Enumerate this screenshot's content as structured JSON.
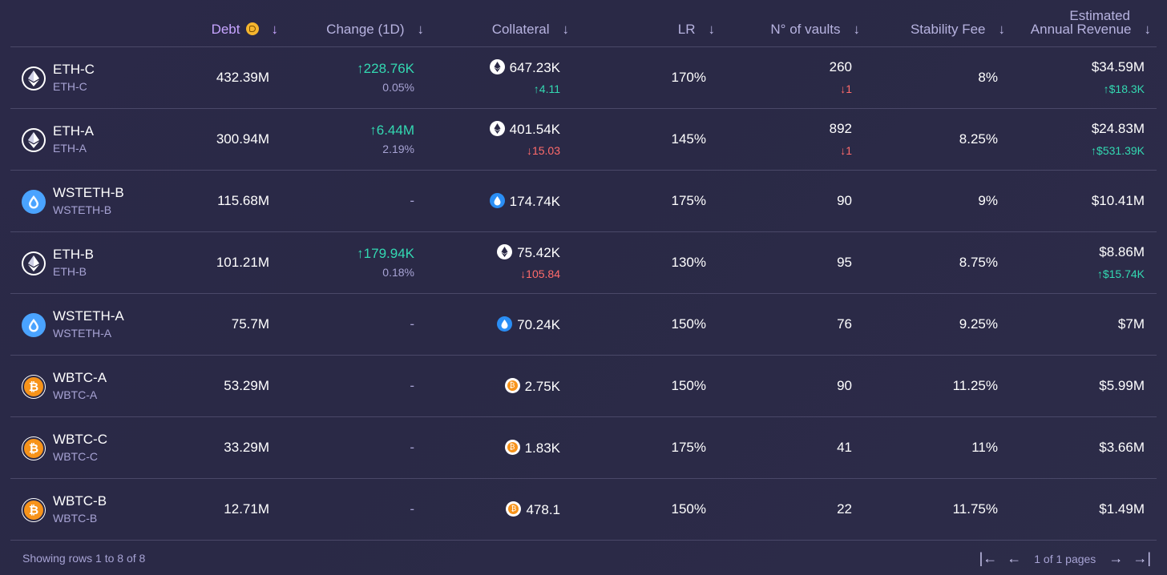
{
  "columns": {
    "debt": "Debt",
    "change": "Change (1D)",
    "collateral": "Collateral",
    "lr": "LR",
    "vaults": "N° of vaults",
    "fee": "Stability Fee",
    "revenue_line1": "Estimated",
    "revenue_line2": "Annual Revenue",
    "sort_arrow": "↓"
  },
  "rows": [
    {
      "icon": "eth",
      "name": "ETH-C",
      "sub": "ETH-C",
      "debt": "432.39M",
      "change": "↑228.76K",
      "change_dir": "up",
      "change_pct": "0.05%",
      "coll_icon": "eth",
      "collateral": "647.23K",
      "coll_delta": "↑4.11",
      "coll_dir": "up",
      "lr": "170%",
      "vaults": "260",
      "vaults_delta": "↓1",
      "vaults_dir": "down",
      "fee": "8%",
      "revenue": "$34.59M",
      "rev_delta": "↑$18.3K",
      "rev_dir": "up"
    },
    {
      "icon": "eth",
      "name": "ETH-A",
      "sub": "ETH-A",
      "debt": "300.94M",
      "change": "↑6.44M",
      "change_dir": "up",
      "change_pct": "2.19%",
      "coll_icon": "eth",
      "collateral": "401.54K",
      "coll_delta": "↓15.03",
      "coll_dir": "down",
      "lr": "145%",
      "vaults": "892",
      "vaults_delta": "↓1",
      "vaults_dir": "down",
      "fee": "8.25%",
      "revenue": "$24.83M",
      "rev_delta": "↑$531.39K",
      "rev_dir": "up"
    },
    {
      "icon": "steth",
      "name": "WSTETH-B",
      "sub": "WSTETH-B",
      "debt": "115.68M",
      "change": "-",
      "change_dir": "none",
      "change_pct": "",
      "coll_icon": "steth",
      "collateral": "174.74K",
      "coll_delta": "",
      "coll_dir": "none",
      "lr": "175%",
      "vaults": "90",
      "vaults_delta": "",
      "vaults_dir": "none",
      "fee": "9%",
      "revenue": "$10.41M",
      "rev_delta": "",
      "rev_dir": "none"
    },
    {
      "icon": "eth",
      "name": "ETH-B",
      "sub": "ETH-B",
      "debt": "101.21M",
      "change": "↑179.94K",
      "change_dir": "up",
      "change_pct": "0.18%",
      "coll_icon": "eth",
      "collateral": "75.42K",
      "coll_delta": "↓105.84",
      "coll_dir": "down",
      "lr": "130%",
      "vaults": "95",
      "vaults_delta": "",
      "vaults_dir": "none",
      "fee": "8.75%",
      "revenue": "$8.86M",
      "rev_delta": "↑$15.74K",
      "rev_dir": "up"
    },
    {
      "icon": "steth",
      "name": "WSTETH-A",
      "sub": "WSTETH-A",
      "debt": "75.7M",
      "change": "-",
      "change_dir": "none",
      "change_pct": "",
      "coll_icon": "steth",
      "collateral": "70.24K",
      "coll_delta": "",
      "coll_dir": "none",
      "lr": "150%",
      "vaults": "76",
      "vaults_delta": "",
      "vaults_dir": "none",
      "fee": "9.25%",
      "revenue": "$7M",
      "rev_delta": "",
      "rev_dir": "none"
    },
    {
      "icon": "btc",
      "name": "WBTC-A",
      "sub": "WBTC-A",
      "debt": "53.29M",
      "change": "-",
      "change_dir": "none",
      "change_pct": "",
      "coll_icon": "btc",
      "collateral": "2.75K",
      "coll_delta": "",
      "coll_dir": "none",
      "lr": "150%",
      "vaults": "90",
      "vaults_delta": "",
      "vaults_dir": "none",
      "fee": "11.25%",
      "revenue": "$5.99M",
      "rev_delta": "",
      "rev_dir": "none"
    },
    {
      "icon": "btc",
      "name": "WBTC-C",
      "sub": "WBTC-C",
      "debt": "33.29M",
      "change": "-",
      "change_dir": "none",
      "change_pct": "",
      "coll_icon": "btc",
      "collateral": "1.83K",
      "coll_delta": "",
      "coll_dir": "none",
      "lr": "175%",
      "vaults": "41",
      "vaults_delta": "",
      "vaults_dir": "none",
      "fee": "11%",
      "revenue": "$3.66M",
      "rev_delta": "",
      "rev_dir": "none"
    },
    {
      "icon": "btc",
      "name": "WBTC-B",
      "sub": "WBTC-B",
      "debt": "12.71M",
      "change": "-",
      "change_dir": "none",
      "change_pct": "",
      "coll_icon": "btc",
      "collateral": "478.1",
      "coll_delta": "",
      "coll_dir": "none",
      "lr": "150%",
      "vaults": "22",
      "vaults_delta": "",
      "vaults_dir": "none",
      "fee": "11.75%",
      "revenue": "$1.49M",
      "rev_delta": "",
      "rev_dir": "none"
    }
  ],
  "footer": {
    "showing": "Showing rows 1 to 8 of 8",
    "pages": "1 of 1 pages",
    "first": "|←",
    "prev": "←",
    "next": "→",
    "last": "→|"
  },
  "colors": {
    "up": "#33d9b2",
    "down": "#ff6b6b",
    "accent": "#c6a4ff"
  }
}
